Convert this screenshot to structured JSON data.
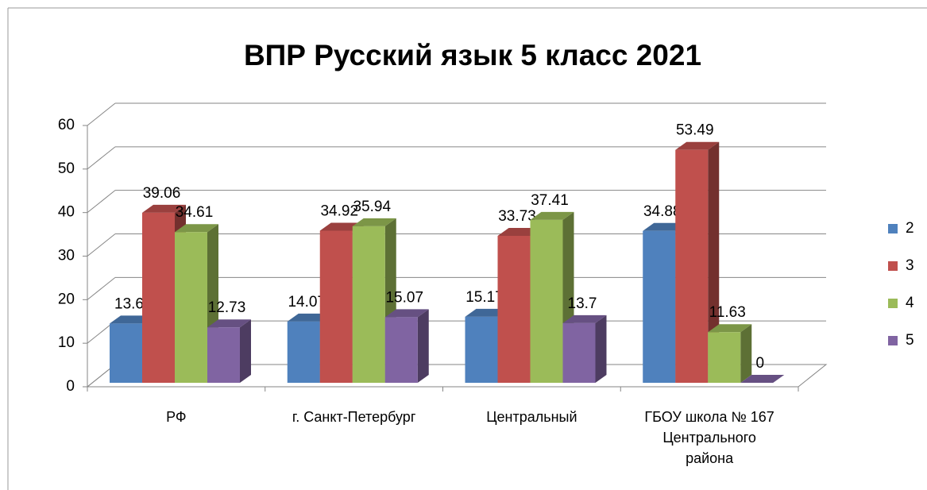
{
  "chart_data": {
    "type": "bar3d",
    "title": "ВПР Русский язык 5 класс 2021",
    "categories": [
      "РФ",
      "г. Санкт-Петербург",
      "Центральный",
      "ГБОУ школа № 167 Центрального района"
    ],
    "series": [
      {
        "name": "2",
        "color": "#4f81bd",
        "values": [
          13.6,
          14.07,
          15.17,
          34.88
        ]
      },
      {
        "name": "3",
        "color": "#c0504d",
        "values": [
          39.06,
          34.92,
          33.73,
          53.49
        ]
      },
      {
        "name": "4",
        "color": "#9bbb59",
        "values": [
          34.61,
          35.94,
          37.41,
          11.63
        ]
      },
      {
        "name": "5",
        "color": "#8064a2",
        "values": [
          12.73,
          15.07,
          13.7,
          0
        ]
      }
    ],
    "ylim": [
      0,
      60
    ],
    "yticks": [
      0,
      10,
      20,
      30,
      40,
      50,
      60
    ],
    "grid": true,
    "legend": "right"
  }
}
